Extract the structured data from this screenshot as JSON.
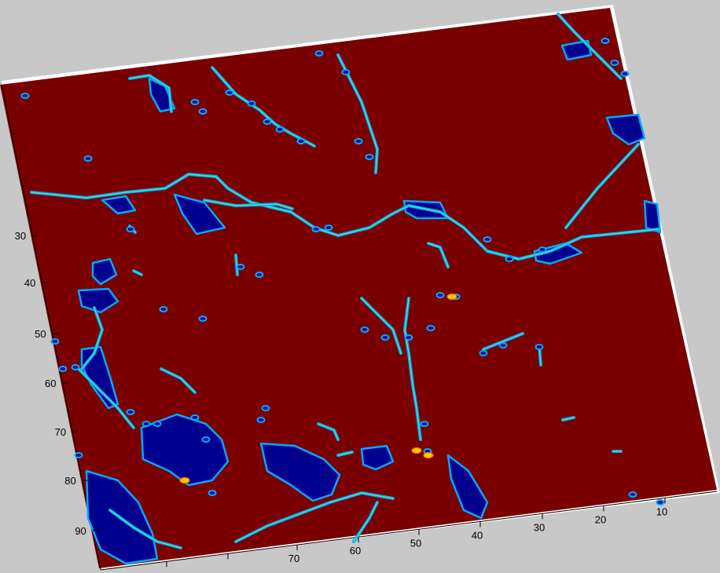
{
  "chart_data": {
    "type": "heatmap",
    "title": "",
    "xlabel": "",
    "ylabel": "",
    "colors": {
      "background": "#7a0000",
      "low": "#00008f",
      "edge_mid": "#00aaff",
      "edge_hi": "#7fff7f",
      "hot": "#ffcc00",
      "frame": "#ffffff",
      "figure_bg": "#c8c8c8"
    },
    "y_axis": {
      "ticks": [
        "30",
        "40",
        "50",
        "60",
        "70",
        "80",
        "90"
      ]
    },
    "x_axis": {
      "ticks": [
        "70",
        "60",
        "50",
        "40",
        "30",
        "20",
        "10"
      ]
    },
    "view": "3d-rotated-surface"
  }
}
